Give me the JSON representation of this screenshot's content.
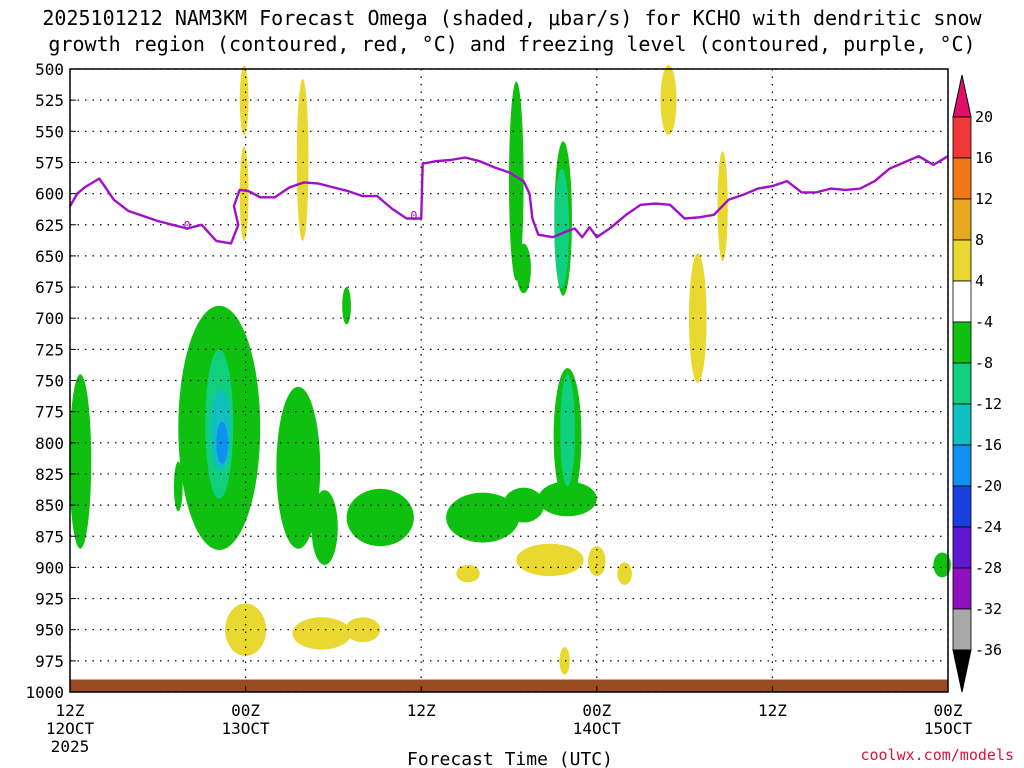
{
  "title_line1": "2025101212 NAM3KM Forecast Omega (shaded, μbar/s) for KCHO with dendritic snow",
  "title_line2": "growth region (contoured, red, °C) and freezing level (contoured, purple, °C)",
  "credit": "coolwx.com/models",
  "chart_data": {
    "type": "heatmap",
    "title": "2025101212 NAM3KM Forecast Omega (shaded, μbar/s) for KCHO with dendritic snow growth region (contoured, red, °C) and freezing level (contoured, purple, °C)",
    "xlabel": "Forecast Time (UTC)",
    "ylabel": "",
    "x_range_hours": [
      0,
      60
    ],
    "y_range_hPa": [
      500,
      1000
    ],
    "y_ticks": [
      "500",
      "525",
      "550",
      "575",
      "600",
      "625",
      "650",
      "675",
      "700",
      "725",
      "750",
      "775",
      "800",
      "825",
      "850",
      "875",
      "900",
      "925",
      "950",
      "975",
      "1000"
    ],
    "x_ticks": [
      {
        "hour": 0,
        "line1": "12Z",
        "line2": "12OCT",
        "line3": "2025"
      },
      {
        "hour": 12,
        "line1": "00Z",
        "line2": "13OCT",
        "line3": ""
      },
      {
        "hour": 24,
        "line1": "12Z",
        "line2": "",
        "line3": ""
      },
      {
        "hour": 36,
        "line1": "00Z",
        "line2": "14OCT",
        "line3": ""
      },
      {
        "hour": 48,
        "line1": "12Z",
        "line2": "",
        "line3": ""
      },
      {
        "hour": 60,
        "line1": "00Z",
        "line2": "15OCT",
        "line3": ""
      }
    ],
    "grid": true,
    "colorbar": {
      "placement": "right",
      "labels": [
        "20",
        "16",
        "12",
        "8",
        "4",
        "-4",
        "-8",
        "-12",
        "-16",
        "-20",
        "-24",
        "-28",
        "-32",
        "-36"
      ],
      "colors": [
        "#e0106a",
        "#f03838",
        "#f07818",
        "#e8a820",
        "#e8d830",
        "#ffffff",
        "#10c010",
        "#10d080",
        "#10c0c0",
        "#1090f0",
        "#1840e0",
        "#6018d0",
        "#9010c0",
        "#a8a8a8",
        "#000000"
      ]
    },
    "freezing_level_label": "0",
    "freezing_level": [
      [
        0,
        610
      ],
      [
        0.5,
        600
      ],
      [
        1,
        595
      ],
      [
        2,
        588
      ],
      [
        3,
        605
      ],
      [
        4,
        614
      ],
      [
        5,
        618
      ],
      [
        6,
        622
      ],
      [
        7,
        625
      ],
      [
        8,
        628
      ],
      [
        9,
        625
      ],
      [
        10,
        638
      ],
      [
        11,
        640
      ],
      [
        11.5,
        625
      ],
      [
        11.2,
        610
      ],
      [
        11.6,
        597
      ],
      [
        12.2,
        598
      ],
      [
        13,
        603
      ],
      [
        14,
        603
      ],
      [
        15,
        595
      ],
      [
        16,
        591
      ],
      [
        17,
        592
      ],
      [
        18,
        595
      ],
      [
        19,
        598
      ],
      [
        20,
        602
      ],
      [
        21,
        602
      ],
      [
        22,
        612
      ],
      [
        23,
        620
      ],
      [
        24,
        620
      ],
      [
        24.1,
        576
      ],
      [
        25,
        574
      ],
      [
        26,
        573
      ],
      [
        27,
        571
      ],
      [
        28,
        574
      ],
      [
        29,
        579
      ],
      [
        30,
        583
      ],
      [
        31,
        590
      ],
      [
        31.4,
        600
      ],
      [
        31.6,
        620
      ],
      [
        32,
        633
      ],
      [
        33,
        635
      ],
      [
        34,
        630
      ],
      [
        34.5,
        628
      ],
      [
        35,
        635
      ],
      [
        35.5,
        627
      ],
      [
        36,
        635
      ],
      [
        37,
        627
      ],
      [
        38,
        617
      ],
      [
        39,
        609
      ],
      [
        40,
        608
      ],
      [
        41,
        609
      ],
      [
        42,
        620
      ],
      [
        43,
        619
      ],
      [
        44,
        617
      ],
      [
        45,
        605
      ],
      [
        46,
        601
      ],
      [
        47,
        596
      ],
      [
        48,
        594
      ],
      [
        49,
        590
      ],
      [
        50,
        599
      ],
      [
        51,
        599
      ],
      [
        52,
        596
      ],
      [
        53,
        597
      ],
      [
        54,
        596
      ],
      [
        55,
        590
      ],
      [
        56,
        580
      ],
      [
        57,
        575
      ],
      [
        58,
        570
      ],
      [
        59,
        577
      ],
      [
        60,
        570
      ]
    ],
    "omega_regions": [
      {
        "value": 4,
        "center": [
          11.9,
          525
        ],
        "radius": [
          0.3,
          28
        ]
      },
      {
        "value": 4,
        "center": [
          11.9,
          600
        ],
        "radius": [
          0.3,
          38
        ]
      },
      {
        "value": 4,
        "center": [
          15.9,
          573
        ],
        "radius": [
          0.4,
          65
        ]
      },
      {
        "value": 4,
        "center": [
          40.9,
          525
        ],
        "radius": [
          0.55,
          28
        ]
      },
      {
        "value": 4,
        "center": [
          44.6,
          610
        ],
        "radius": [
          0.35,
          44
        ]
      },
      {
        "value": 4,
        "center": [
          42.9,
          700
        ],
        "radius": [
          0.6,
          52
        ]
      },
      {
        "value": 4,
        "center": [
          12.0,
          950
        ],
        "radius": [
          1.4,
          21
        ]
      },
      {
        "value": 4,
        "center": [
          17.2,
          953
        ],
        "radius": [
          2.0,
          13
        ]
      },
      {
        "value": 4,
        "center": [
          20.0,
          950
        ],
        "radius": [
          1.2,
          10
        ]
      },
      {
        "value": 4,
        "center": [
          27.2,
          905
        ],
        "radius": [
          0.8,
          7
        ]
      },
      {
        "value": 4,
        "center": [
          32.8,
          894
        ],
        "radius": [
          2.3,
          13
        ]
      },
      {
        "value": 4,
        "center": [
          36.0,
          895
        ],
        "radius": [
          0.6,
          12
        ]
      },
      {
        "value": 4,
        "center": [
          37.9,
          905
        ],
        "radius": [
          0.5,
          9
        ]
      },
      {
        "value": 4,
        "center": [
          33.8,
          975
        ],
        "radius": [
          0.35,
          11
        ]
      },
      {
        "value": -4,
        "center": [
          0.7,
          815
        ],
        "radius": [
          0.75,
          70
        ]
      },
      {
        "value": -4,
        "center": [
          10.2,
          788
        ],
        "radius": [
          2.8,
          98
        ]
      },
      {
        "value": -4,
        "center": [
          15.6,
          820
        ],
        "radius": [
          1.5,
          65
        ]
      },
      {
        "value": -4,
        "center": [
          17.4,
          868
        ],
        "radius": [
          0.9,
          30
        ]
      },
      {
        "value": -4,
        "center": [
          21.2,
          860
        ],
        "radius": [
          2.3,
          23
        ]
      },
      {
        "value": -4,
        "center": [
          28.2,
          860
        ],
        "radius": [
          2.5,
          20
        ]
      },
      {
        "value": -4,
        "center": [
          31.0,
          850
        ],
        "radius": [
          1.4,
          14
        ]
      },
      {
        "value": -4,
        "center": [
          34.0,
          845
        ],
        "radius": [
          2.0,
          14
        ]
      },
      {
        "value": -4,
        "center": [
          34.0,
          795
        ],
        "radius": [
          0.95,
          55
        ]
      },
      {
        "value": -4,
        "center": [
          30.5,
          590
        ],
        "radius": [
          0.5,
          80
        ]
      },
      {
        "value": -4,
        "center": [
          31.0,
          660
        ],
        "radius": [
          0.5,
          20
        ]
      },
      {
        "value": -4,
        "center": [
          33.7,
          620
        ],
        "radius": [
          0.6,
          62
        ]
      },
      {
        "value": -4,
        "center": [
          18.9,
          690
        ],
        "radius": [
          0.3,
          15
        ]
      },
      {
        "value": -4,
        "center": [
          7.4,
          835
        ],
        "radius": [
          0.3,
          20
        ]
      },
      {
        "value": -4,
        "center": [
          59.6,
          898
        ],
        "radius": [
          0.6,
          10
        ]
      },
      {
        "value": -8,
        "center": [
          10.2,
          785
        ],
        "radius": [
          0.95,
          60
        ]
      },
      {
        "value": -8,
        "center": [
          33.6,
          628
        ],
        "radius": [
          0.5,
          48
        ]
      },
      {
        "value": -8,
        "center": [
          34.0,
          790
        ],
        "radius": [
          0.5,
          45
        ]
      },
      {
        "value": -12,
        "center": [
          10.3,
          790
        ],
        "radius": [
          0.7,
          33
        ]
      },
      {
        "value": -16,
        "center": [
          10.4,
          800
        ],
        "radius": [
          0.4,
          17
        ]
      }
    ]
  }
}
